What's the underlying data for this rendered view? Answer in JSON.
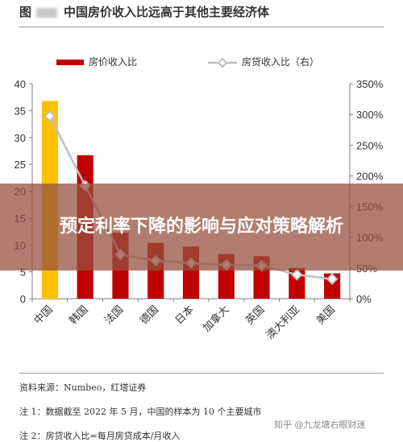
{
  "header": {
    "figure_label": "图",
    "title": "中国房价收入比远高于其他主要经济体"
  },
  "banner": {
    "text": "预定利率下降的影响与应对策略解析"
  },
  "notes": {
    "source": "资料来源：Numbeo，红塔证券",
    "note1": "注 1：数据截至 2022 年 5 月，中国的样本为 10 个主要城市",
    "note2": "注 2：房贷收入比=每月房贷成本/月收入"
  },
  "watermark": "知乎 @九龙塘右眼财迷",
  "colors": {
    "bar": "#c00000",
    "bar_highlight": "#ffc000",
    "line": "#bfbfbf",
    "axis": "#7f7f7f"
  },
  "chart_data": {
    "type": "bar",
    "categories": [
      "中国",
      "韩国",
      "法国",
      "德国",
      "日本",
      "加拿大",
      "英国",
      "澳大利亚",
      "美国"
    ],
    "series": [
      {
        "name": "房价收入比",
        "type": "bar",
        "axis": "left",
        "values": [
          36.8,
          26.7,
          12.3,
          10.4,
          9.7,
          8.3,
          7.9,
          5.7,
          4.7
        ]
      },
      {
        "name": "房贷收入比（右）",
        "type": "line",
        "axis": "right",
        "values": [
          297,
          184,
          72,
          62,
          58,
          55,
          54,
          39,
          32
        ]
      }
    ],
    "y_left": {
      "min": 0,
      "max": 40,
      "ticks": [
        0,
        5,
        10,
        15,
        20,
        25,
        30,
        35,
        40
      ]
    },
    "y_right": {
      "min": 0,
      "max": 350,
      "ticks": [
        "0%",
        "50%",
        "100%",
        "150%",
        "200%",
        "250%",
        "300%",
        "350%"
      ]
    },
    "legend_position": "top",
    "grid": false
  }
}
